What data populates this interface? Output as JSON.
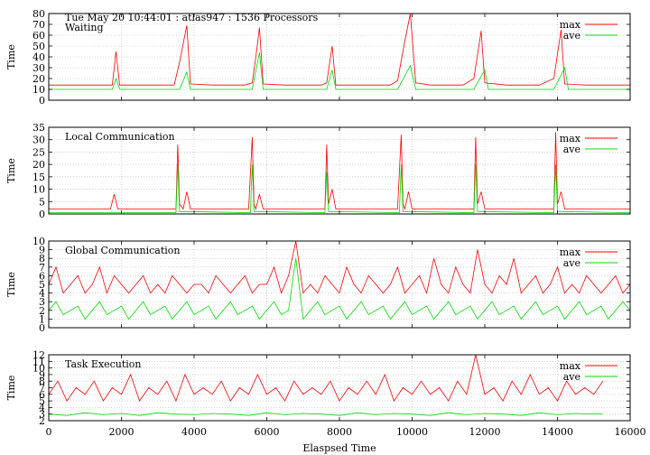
{
  "header": "Tue May 20 10:44:01 : atlas947 : 1536 Processors",
  "x_axis": {
    "label": "Elaspsed Time",
    "min": 0,
    "max": 16000,
    "ticks": [
      0,
      2000,
      4000,
      6000,
      8000,
      10000,
      12000,
      14000,
      16000
    ]
  },
  "legend": {
    "max_label": "max",
    "ave_label": "ave"
  },
  "colors": {
    "max": "#ff0000",
    "ave": "#00dd00",
    "grid": "#b8b8b8"
  },
  "chart_data": [
    {
      "type": "line",
      "title": "Waiting",
      "ylabel": "Time",
      "ylim": [
        0,
        80
      ],
      "yticks": [
        0,
        10,
        20,
        30,
        40,
        50,
        60,
        70,
        80
      ],
      "grid": true,
      "legend_position": "top-right",
      "series": [
        {
          "name": "max",
          "color": "#ff0000",
          "x": [
            0,
            1750,
            1850,
            1950,
            2800,
            3450,
            3600,
            3800,
            3900,
            4500,
            5400,
            5600,
            5700,
            5800,
            5900,
            6500,
            7500,
            7650,
            7800,
            7900,
            8500,
            9400,
            9600,
            9800,
            9950,
            10100,
            10500,
            11400,
            11700,
            11900,
            12000,
            12600,
            13500,
            13900,
            14100,
            14200,
            14800,
            16000
          ],
          "y": [
            14,
            14,
            45,
            14,
            14,
            14,
            35,
            69,
            15,
            14,
            14,
            16,
            40,
            67,
            15,
            14,
            14,
            16,
            50,
            14,
            14,
            14,
            18,
            55,
            80,
            16,
            14,
            14,
            20,
            64,
            16,
            14,
            14,
            20,
            65,
            15,
            14,
            14
          ]
        },
        {
          "name": "ave",
          "color": "#00dd00",
          "x": [
            0,
            1750,
            1850,
            1950,
            2800,
            3600,
            3800,
            3900,
            4500,
            5600,
            5800,
            5900,
            6500,
            7650,
            7800,
            7900,
            8500,
            9600,
            9950,
            10100,
            10500,
            11700,
            12000,
            12100,
            12600,
            13900,
            14200,
            14300,
            14800,
            16000
          ],
          "y": [
            10,
            10,
            20,
            10,
            10,
            10,
            26,
            10,
            10,
            10,
            44,
            10,
            10,
            10,
            28,
            10,
            10,
            10,
            32,
            10,
            10,
            10,
            28,
            10,
            10,
            10,
            30,
            10,
            10,
            10
          ]
        }
      ]
    },
    {
      "type": "line",
      "title": "Local Communication",
      "ylabel": "Time",
      "ylim": [
        0,
        35
      ],
      "yticks": [
        0,
        5,
        10,
        15,
        20,
        25,
        30,
        35
      ],
      "grid": true,
      "legend_position": "top-right",
      "series": [
        {
          "name": "max",
          "color": "#ff0000",
          "x": [
            0,
            1700,
            1800,
            1900,
            3500,
            3550,
            3600,
            3700,
            3800,
            3900,
            5500,
            5600,
            5650,
            5700,
            5800,
            5900,
            7600,
            7650,
            7700,
            7800,
            7900,
            9600,
            9700,
            9750,
            9800,
            9900,
            10000,
            11700,
            11750,
            11800,
            11900,
            12000,
            13900,
            13950,
            14000,
            14100,
            14200,
            16000
          ],
          "y": [
            2,
            2,
            8,
            2,
            2,
            28,
            4,
            2,
            9,
            2,
            2,
            31,
            4,
            2,
            8,
            2,
            2,
            28,
            4,
            10,
            2,
            2,
            32,
            4,
            2,
            9,
            2,
            2,
            31,
            4,
            9,
            2,
            2,
            33,
            4,
            9,
            2,
            2
          ]
        },
        {
          "name": "ave",
          "color": "#00dd00",
          "x": [
            0,
            3500,
            3550,
            3600,
            3800,
            5550,
            5600,
            5650,
            5800,
            7600,
            7650,
            7700,
            7800,
            9650,
            9700,
            9750,
            9900,
            11700,
            11750,
            11800,
            11900,
            13900,
            13950,
            14000,
            14100,
            16000
          ],
          "y": [
            0.5,
            0.5,
            20,
            1,
            1,
            0.5,
            20,
            1,
            1,
            0.5,
            17,
            1,
            1,
            0.5,
            20,
            1,
            1,
            0.5,
            20,
            1,
            1,
            0.5,
            20,
            1,
            1,
            0.5
          ]
        }
      ]
    },
    {
      "type": "line",
      "title": "Global Communication",
      "ylabel": "Time",
      "ylim": [
        0,
        10
      ],
      "yticks": [
        0,
        1,
        2,
        3,
        4,
        5,
        6,
        7,
        8,
        9,
        10
      ],
      "grid": true,
      "legend_position": "top-right",
      "series": [
        {
          "name": "max",
          "color": "#ff0000",
          "x": [
            0,
            200,
            400,
            600,
            800,
            1000,
            1200,
            1400,
            1600,
            1800,
            2000,
            2200,
            2400,
            2600,
            2800,
            3000,
            3200,
            3400,
            3600,
            3800,
            4000,
            4200,
            4400,
            4600,
            4800,
            5000,
            5200,
            5400,
            5600,
            5800,
            6000,
            6200,
            6400,
            6600,
            6800,
            7000,
            7200,
            7400,
            7600,
            7800,
            8000,
            8200,
            8400,
            8600,
            8800,
            9000,
            9200,
            9400,
            9600,
            9800,
            10000,
            10200,
            10400,
            10600,
            10800,
            11000,
            11200,
            11400,
            11600,
            11800,
            12000,
            12200,
            12400,
            12600,
            12800,
            13000,
            13200,
            13400,
            13600,
            13800,
            14000,
            14200,
            14400,
            14600,
            14800,
            15000,
            15200,
            15400,
            15600,
            15800,
            16000
          ],
          "y": [
            5,
            7,
            4,
            5,
            6,
            4,
            5,
            7,
            4,
            6,
            5,
            4,
            5,
            6,
            4,
            5,
            4,
            6,
            5,
            4,
            5,
            5,
            4,
            6,
            5,
            4,
            5,
            6,
            4,
            5,
            5,
            7,
            4,
            6,
            10,
            4,
            5,
            4,
            6,
            5,
            4,
            7,
            5,
            4,
            6,
            5,
            4,
            5,
            7,
            4,
            5,
            6,
            4,
            8,
            5,
            4,
            7,
            5,
            4,
            9,
            5,
            4,
            6,
            5,
            8,
            4,
            5,
            6,
            4,
            5,
            7,
            4,
            5,
            4,
            6,
            5,
            4,
            5,
            6,
            4,
            5
          ]
        },
        {
          "name": "ave",
          "color": "#00dd00",
          "x": [
            0,
            200,
            400,
            600,
            800,
            1000,
            1200,
            1400,
            1600,
            1800,
            2000,
            2200,
            2400,
            2600,
            2800,
            3000,
            3200,
            3400,
            3600,
            3800,
            4000,
            4200,
            4400,
            4600,
            4800,
            5000,
            5200,
            5400,
            5600,
            5800,
            6000,
            6200,
            6400,
            6600,
            6800,
            7000,
            7200,
            7400,
            7600,
            7800,
            8000,
            8200,
            8400,
            8600,
            8800,
            9000,
            9200,
            9400,
            9600,
            9800,
            10000,
            10200,
            10400,
            10600,
            10800,
            11000,
            11200,
            11400,
            11600,
            11800,
            12000,
            12200,
            12400,
            12600,
            12800,
            13000,
            13200,
            13400,
            13600,
            13800,
            14000,
            14200,
            14400,
            14600,
            14800,
            15000,
            15200,
            15400,
            15600,
            15800,
            16000
          ],
          "y": [
            2,
            3,
            1.5,
            2,
            2.5,
            1,
            2,
            3,
            1.5,
            2,
            2.5,
            1,
            2,
            3,
            1.5,
            2,
            2.5,
            1,
            2,
            3,
            1.5,
            2,
            2.5,
            1,
            2,
            3,
            1.5,
            2,
            2.5,
            1,
            2,
            3,
            1.5,
            2,
            8,
            1,
            2,
            3,
            1.5,
            2,
            2.5,
            1,
            2,
            3,
            1.5,
            2,
            2.5,
            1,
            2,
            3,
            1.5,
            2,
            2.5,
            1,
            2,
            3,
            1.5,
            2,
            2.5,
            1,
            2,
            3,
            1.5,
            2,
            2.5,
            1,
            2,
            3,
            1.5,
            2,
            2.5,
            1,
            2,
            3,
            1.5,
            2,
            2.5,
            1,
            2,
            3,
            2
          ]
        }
      ]
    },
    {
      "type": "line",
      "title": "Task Execution",
      "ylabel": "Time",
      "ylim": [
        2,
        12
      ],
      "yticks": [
        2,
        3,
        4,
        5,
        6,
        7,
        8,
        9,
        10,
        11,
        12
      ],
      "grid": true,
      "legend_position": "top-right",
      "series": [
        {
          "name": "max",
          "color": "#ff0000",
          "x": [
            0,
            250,
            500,
            750,
            1000,
            1250,
            1500,
            1750,
            2000,
            2250,
            2500,
            2750,
            3000,
            3250,
            3500,
            3750,
            4000,
            4250,
            4500,
            4750,
            5000,
            5250,
            5500,
            5750,
            6000,
            6250,
            6500,
            6750,
            7000,
            7250,
            7500,
            7750,
            8000,
            8250,
            8500,
            8750,
            9000,
            9250,
            9500,
            9750,
            10000,
            10250,
            10500,
            10750,
            11000,
            11250,
            11500,
            11750,
            12000,
            12250,
            12500,
            12750,
            13000,
            13250,
            13500,
            13750,
            14000,
            14250,
            14500,
            14750,
            15000,
            15250
          ],
          "y": [
            6,
            8,
            5,
            7,
            6,
            8,
            5,
            7,
            6,
            9,
            5,
            7,
            6,
            8,
            5,
            9,
            6,
            7,
            6,
            8,
            5,
            7,
            6,
            9,
            6,
            7,
            5,
            8,
            6,
            7,
            6,
            8,
            5,
            7,
            6,
            8,
            6,
            9,
            5,
            7,
            6,
            8,
            6,
            7,
            5,
            8,
            6,
            12,
            6,
            7,
            5,
            8,
            6,
            9,
            6,
            7,
            5,
            8,
            6,
            7,
            6,
            8
          ]
        },
        {
          "name": "ave",
          "color": "#00dd00",
          "x": [
            0,
            500,
            1000,
            1500,
            2000,
            2500,
            3000,
            3500,
            4000,
            4500,
            5000,
            5500,
            6000,
            6500,
            7000,
            7500,
            8000,
            8500,
            9000,
            9500,
            10000,
            10500,
            11000,
            11500,
            12000,
            12500,
            13000,
            13500,
            14000,
            14500,
            15000,
            15250
          ],
          "y": [
            3,
            2.8,
            3.2,
            2.9,
            3.1,
            2.8,
            3.2,
            3,
            2.9,
            3.1,
            3,
            2.8,
            3.2,
            2.9,
            3.1,
            3,
            2.8,
            3.2,
            2.9,
            3.1,
            3,
            2.8,
            3.2,
            2.9,
            3.1,
            3,
            2.8,
            3.2,
            2.9,
            3.1,
            3,
            3
          ]
        }
      ]
    }
  ]
}
